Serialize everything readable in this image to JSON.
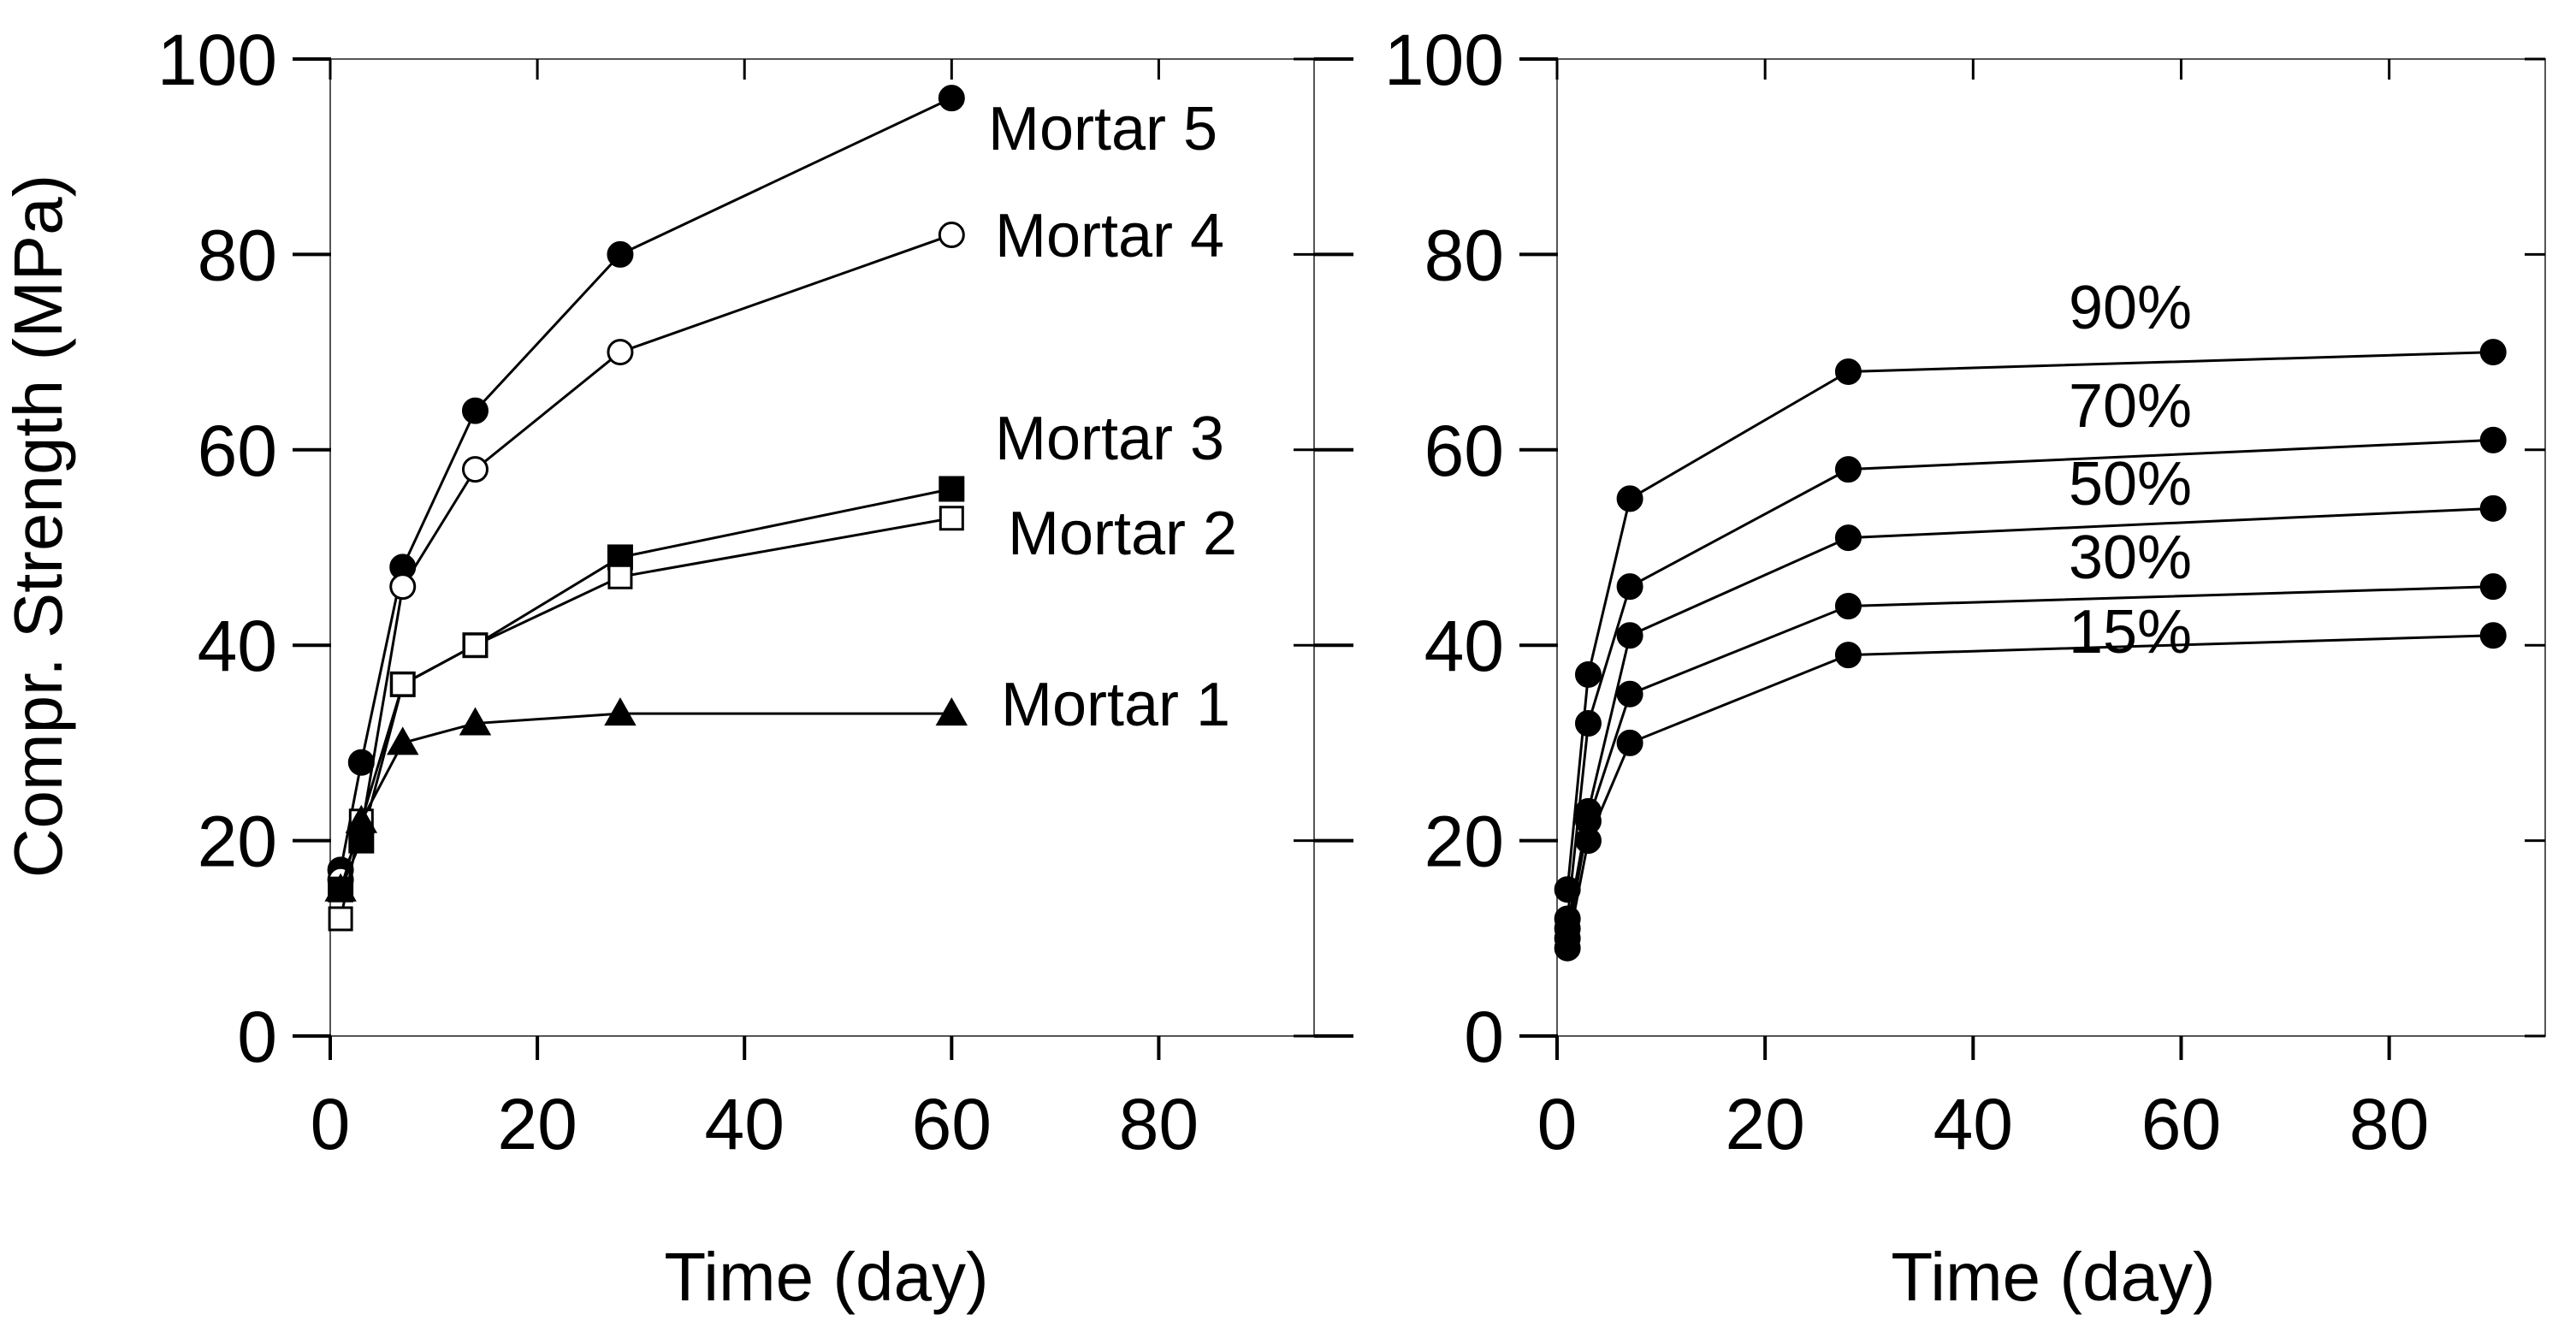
{
  "chart_data": [
    {
      "type": "line",
      "xlabel": "Time (day)",
      "ylabel": "Compr. Strength (MPa)",
      "xlim": [
        0,
        95
      ],
      "ylim": [
        0,
        100
      ],
      "xticks": [
        0,
        20,
        40,
        60,
        80
      ],
      "yticks": [
        0,
        20,
        40,
        60,
        80,
        100
      ],
      "x_tick_labels": [
        "0",
        "20",
        "40",
        "60",
        "80"
      ],
      "y_tick_labels": [
        "0",
        "20",
        "40",
        "60",
        "80",
        "100"
      ],
      "grid": false,
      "series": [
        {
          "name": "Mortar 5",
          "marker": "filled-circle",
          "x": [
            1,
            3,
            7,
            14,
            28,
            60
          ],
          "y": [
            17,
            28,
            48,
            64,
            80,
            96
          ]
        },
        {
          "name": "Mortar 4",
          "marker": "open-circle",
          "x": [
            1,
            3,
            7,
            14,
            28,
            60
          ],
          "y": [
            16,
            21,
            46,
            58,
            70,
            82
          ]
        },
        {
          "name": "Mortar 3",
          "marker": "filled-square",
          "x": [
            1,
            3,
            7,
            14,
            28,
            60
          ],
          "y": [
            15,
            20,
            36,
            40,
            49,
            56
          ]
        },
        {
          "name": "Mortar 2",
          "marker": "open-square",
          "x": [
            1,
            3,
            7,
            14,
            28,
            60
          ],
          "y": [
            12,
            22,
            36,
            40,
            47,
            53
          ]
        },
        {
          "name": "Mortar 1",
          "marker": "filled-triangle",
          "x": [
            1,
            3,
            7,
            14,
            28,
            60
          ],
          "y": [
            15,
            22,
            30,
            32,
            33,
            33
          ]
        }
      ]
    },
    {
      "type": "line",
      "xlabel": "Time (day)",
      "ylabel": "",
      "xlim": [
        0,
        95
      ],
      "ylim": [
        0,
        100
      ],
      "xticks": [
        0,
        20,
        40,
        60,
        80
      ],
      "yticks": [
        0,
        20,
        40,
        60,
        80,
        100
      ],
      "x_tick_labels": [
        "0",
        "20",
        "40",
        "60",
        "80"
      ],
      "y_tick_labels": [
        "0",
        "20",
        "40",
        "60",
        "80",
        "100"
      ],
      "grid": false,
      "series": [
        {
          "name": "90%",
          "marker": "filled-circle",
          "x": [
            1,
            3,
            7,
            28,
            90
          ],
          "y": [
            15,
            37,
            55,
            68,
            70
          ]
        },
        {
          "name": "70%",
          "marker": "filled-circle",
          "x": [
            1,
            3,
            7,
            28,
            90
          ],
          "y": [
            12,
            32,
            46,
            58,
            61
          ]
        },
        {
          "name": "50%",
          "marker": "filled-circle",
          "x": [
            1,
            3,
            7,
            28,
            90
          ],
          "y": [
            11,
            23,
            41,
            51,
            54
          ]
        },
        {
          "name": "30%",
          "marker": "filled-circle",
          "x": [
            1,
            3,
            7,
            28,
            90
          ],
          "y": [
            10,
            22,
            35,
            44,
            46
          ]
        },
        {
          "name": "15%",
          "marker": "filled-circle",
          "x": [
            1,
            3,
            7,
            28,
            90
          ],
          "y": [
            9,
            20,
            30,
            39,
            41
          ]
        }
      ]
    }
  ],
  "colors": {
    "background": "#ffffff",
    "ink": "#000000"
  }
}
